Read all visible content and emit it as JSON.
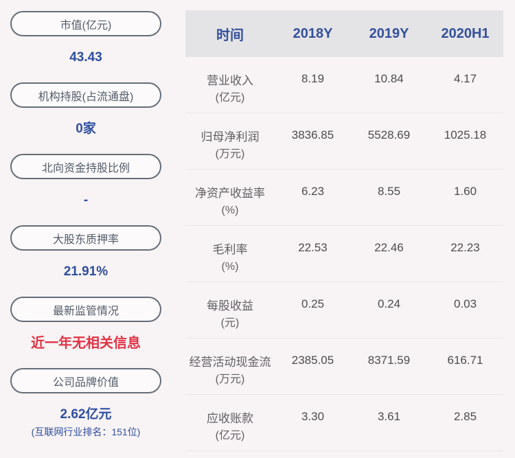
{
  "colors": {
    "accent_blue": "#2d4e9e",
    "alert_red": "#e13345",
    "header_bg": "#e4e4e6",
    "page_bg": "#f8f3f4"
  },
  "sidebar": {
    "items": [
      {
        "label": "市值(亿元)",
        "value": "43.43"
      },
      {
        "label": "机构持股(占流通盘)",
        "value": "0家"
      },
      {
        "label": "北向资金持股比例",
        "value": "-"
      },
      {
        "label": "大股东质押率",
        "value": "21.91%"
      },
      {
        "label": "最新监管情况",
        "value": "近一年无相关信息"
      },
      {
        "label": "公司品牌价值",
        "value": "2.62亿元",
        "note": "(互联网行业排名：151位)"
      }
    ]
  },
  "table": {
    "header": {
      "time_label": "时间",
      "columns": [
        "2018Y",
        "2019Y",
        "2020H1"
      ]
    },
    "rows": [
      {
        "name": "营业收入",
        "unit": "(亿元)",
        "values": [
          "8.19",
          "10.84",
          "4.17"
        ]
      },
      {
        "name": "归母净利润",
        "unit": "(万元)",
        "values": [
          "3836.85",
          "5528.69",
          "1025.18"
        ]
      },
      {
        "name": "净资产收益率",
        "unit": "(%)",
        "values": [
          "6.23",
          "8.55",
          "1.60"
        ]
      },
      {
        "name": "毛利率",
        "unit": "(%)",
        "values": [
          "22.53",
          "22.46",
          "22.23"
        ]
      },
      {
        "name": "每股收益",
        "unit": "(元)",
        "values": [
          "0.25",
          "0.24",
          "0.03"
        ]
      },
      {
        "name": "经营活动现金流",
        "unit": "(万元)",
        "values": [
          "2385.05",
          "8371.59",
          "616.71"
        ]
      },
      {
        "name": "应收账款",
        "unit": "(亿元)",
        "values": [
          "3.30",
          "3.61",
          "2.85"
        ]
      }
    ]
  }
}
